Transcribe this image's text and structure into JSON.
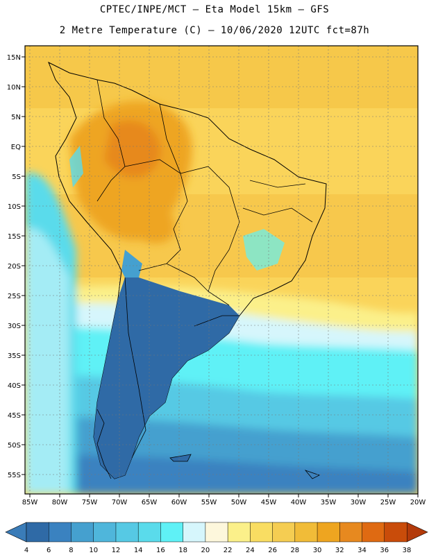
{
  "header": {
    "line1": "CPTEC/INPE/MCT –  Eta Model 15km – GFS",
    "line2": "2 Metre Temperature (C) – 10/06/2020 12UTC fct=87h"
  },
  "map": {
    "region": "South America",
    "lat_labels": [
      "15N",
      "10N",
      "5N",
      "EQ",
      "5S",
      "10S",
      "15S",
      "20S",
      "25S",
      "30S",
      "35S",
      "40S",
      "45S",
      "50S",
      "55S"
    ],
    "lon_labels": [
      "85W",
      "80W",
      "75W",
      "70W",
      "65W",
      "60W",
      "55W",
      "50W",
      "45W",
      "40W",
      "35W",
      "30W",
      "25W",
      "20W"
    ]
  },
  "colorbar": {
    "labels": [
      "4",
      "6",
      "8",
      "10",
      "12",
      "14",
      "16",
      "18",
      "20",
      "22",
      "24",
      "26",
      "28",
      "30",
      "32",
      "34",
      "36",
      "38"
    ],
    "low_arrow_color": "#3a7cb8",
    "high_arrow_color": "#b33a0a",
    "colors": [
      "#2f6aa6",
      "#3a82c0",
      "#45a0cf",
      "#4fb6db",
      "#56c9e4",
      "#5adbeb",
      "#5ff1f6",
      "#d6f6fc",
      "#fdf7dc",
      "#fbf08a",
      "#f9dd62",
      "#f5cd52",
      "#f1bc38",
      "#eea520",
      "#e7891f",
      "#df6a12",
      "#c94c0a"
    ]
  }
}
